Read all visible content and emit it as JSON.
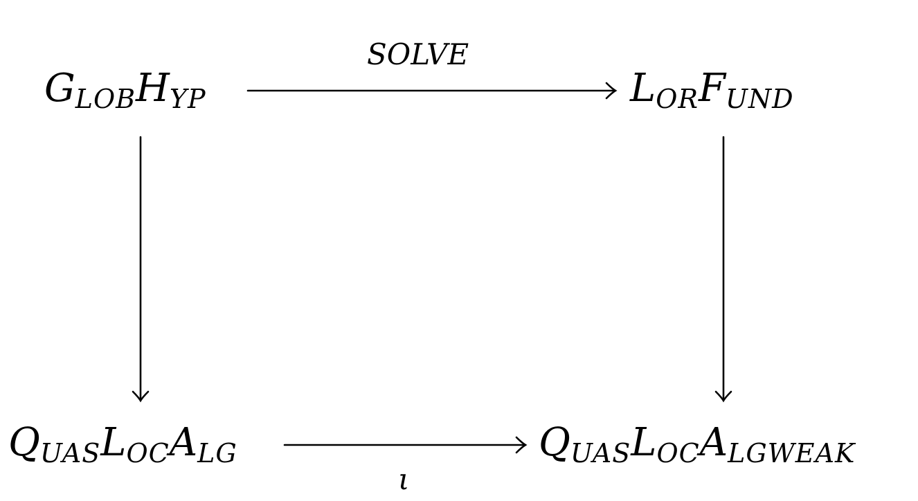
{
  "nodes": {
    "top_left": {
      "main1": "G",
      "sub1": "LOB",
      "main2": "H",
      "sub2": "YP"
    },
    "top_right": {
      "main1": "L",
      "sub1": "OR",
      "main2": "F",
      "sub2": "UND"
    },
    "bottom_left": {
      "main1": "Q",
      "sub1": "UAS",
      "main2": "L",
      "sub2": "OC",
      "main3": "A",
      "sub3": "LG"
    },
    "bottom_right": {
      "main1": "Q",
      "sub1": "UAS",
      "main2": "L",
      "sub2": "OC",
      "main3": "A",
      "sub3": "LGWEAK"
    }
  },
  "arrows": {
    "top": {
      "label": "SOLVE"
    },
    "bottom": {
      "label": "ι"
    },
    "left": {
      "label": ""
    },
    "right": {
      "label": ""
    }
  },
  "colors": {
    "ink": "#000000",
    "background": "#ffffff"
  }
}
